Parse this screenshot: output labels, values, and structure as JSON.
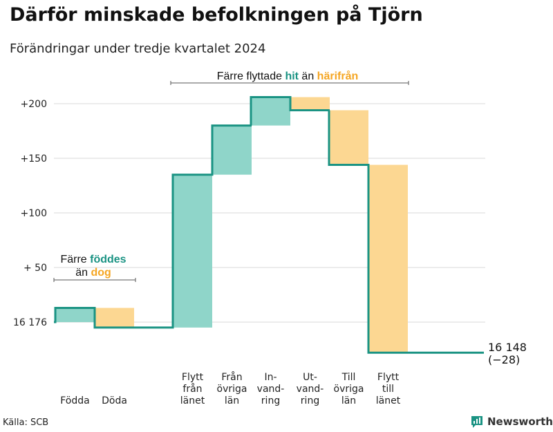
{
  "title": "Därför minskade befolkningen på Tjörn",
  "subtitle": "Förändringar under tredje kvartalet 2024",
  "source": "Källa: SCB",
  "brand": "Newsworthy",
  "colors": {
    "inflow": "#8fd5c9",
    "outflow": "#fcd792",
    "line": "#1a9383",
    "hit": "#1a9383",
    "harifran": "#f5a623",
    "grid": "#d8d8d8"
  },
  "annotations": [
    {
      "parts": [
        "Färre flyttade ",
        "hit",
        " än ",
        "härifrån"
      ],
      "range": [
        "Flytt från länet",
        "Flytt till länet"
      ]
    },
    {
      "line1": [
        "Färre ",
        "föddes"
      ],
      "line2": [
        "än ",
        "dog"
      ],
      "range": [
        "Födda",
        "Döda"
      ]
    }
  ],
  "chart_data": {
    "type": "waterfall",
    "title": "Därför minskade befolkningen på Tjörn",
    "subtitle": "Förändringar under tredje kvartalet 2024",
    "base": 16176,
    "yticks": [
      {
        "value": 0,
        "label": "16 176"
      },
      {
        "value": 50,
        "label": "+ 50"
      },
      {
        "value": 100,
        "label": "+100"
      },
      {
        "value": 150,
        "label": "+150"
      },
      {
        "value": 200,
        "label": "+200"
      }
    ],
    "ylim": [
      -25,
      210
    ],
    "steps": [
      {
        "group": 0,
        "label": [
          "Födda"
        ],
        "delta": 13,
        "kind": "inflow"
      },
      {
        "group": 0,
        "label": [
          "Döda"
        ],
        "delta": -18,
        "kind": "outflow"
      },
      {
        "group": 1,
        "label": [
          "Flytt",
          "från",
          "länet"
        ],
        "delta": 140,
        "kind": "inflow"
      },
      {
        "group": 1,
        "label": [
          "Från",
          "övriga",
          "län"
        ],
        "delta": 45,
        "kind": "inflow"
      },
      {
        "group": 1,
        "label": [
          "In-",
          "vand-",
          "ring"
        ],
        "delta": 26,
        "kind": "inflow"
      },
      {
        "group": 1,
        "label": [
          "Ut-",
          "vand-",
          "ring"
        ],
        "delta": -12,
        "kind": "outflow"
      },
      {
        "group": 1,
        "label": [
          "Till",
          "övriga",
          "län"
        ],
        "delta": -50,
        "kind": "outflow"
      },
      {
        "group": 1,
        "label": [
          "Flytt",
          "till",
          "länet"
        ],
        "delta": -172,
        "kind": "outflow"
      }
    ],
    "end_label": [
      "16 148",
      "(−28)"
    ],
    "end_value": -28
  }
}
